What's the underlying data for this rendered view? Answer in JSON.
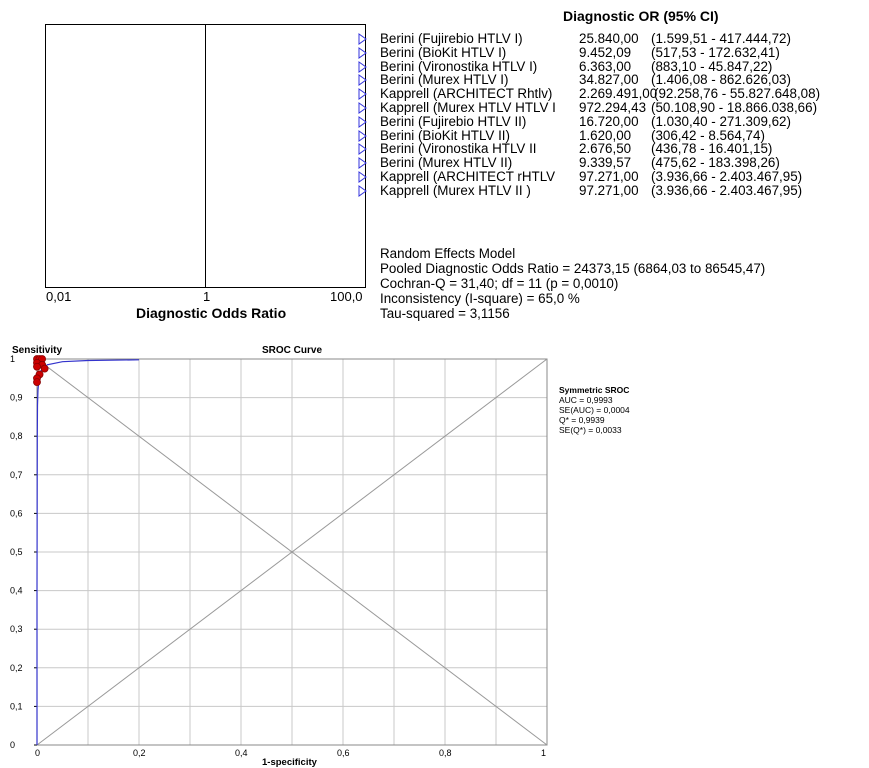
{
  "forest": {
    "header": "Diagnostic OR (95% CI)",
    "ticks": [
      "0,01",
      "1",
      "100,0"
    ],
    "xlabel": "Diagnostic Odds Ratio",
    "studies": [
      {
        "name": "Berini (Fujirebio HTLV I)",
        "or": "25.840,00",
        "ci": "(1.599,51 - 417.444,72)"
      },
      {
        "name": "Berini (BioKit HTLV I)",
        "or": "9.452,09",
        "ci": "(517,53 - 172.632,41)"
      },
      {
        "name": "Berini (Vironostika HTLV I)",
        "or": "6.363,00",
        "ci": "(883,10 - 45.847,22)"
      },
      {
        "name": "Berini (Murex HTLV I)",
        "or": "34.827,00",
        "ci": "(1.406,08 - 862.626,03)"
      },
      {
        "name": "Kapprell (ARCHITECT Rhtlv)",
        "or": "2.269.491,00",
        "ci": "(92.258,76 - 55.827.648,08)"
      },
      {
        "name": "Kapprell (Murex HTLV HTLV I",
        "or": "972.294,43",
        "ci": "(50.108,90 - 18.866.038,66)"
      },
      {
        "name": "Berini (Fujirebio HTLV II)",
        "or": "16.720,00",
        "ci": "(1.030,40 - 271.309,62)"
      },
      {
        "name": "Berini (BioKit HTLV II)",
        "or": "1.620,00",
        "ci": "(306,42 - 8.564,74)"
      },
      {
        "name": "Berini (Vironostika HTLV II",
        "or": "2.676,50",
        "ci": "(436,78 - 16.401,15)"
      },
      {
        "name": "Berini (Murex HTLV II)",
        "or": "9.339,57",
        "ci": "(475,62 - 183.398,26)"
      },
      {
        "name": "Kapprell (ARCHITECT rHTLV",
        "or": "97.271,00",
        "ci": "(3.936,66 - 2.403.467,95)"
      },
      {
        "name": "Kapprell (Murex HTLV II )",
        "or": "97.271,00",
        "ci": "(3.936,66 - 2.403.467,95)"
      }
    ],
    "summary": [
      "Random Effects Model",
      "Pooled Diagnostic Odds Ratio = 24373,15 (6864,03 to 86545,47)",
      "Cochran-Q = 31,40; df =  11 (p = 0,0010)",
      "Inconsistency (I-square) = 65,0 %",
      "Tau-squared = 3,1156"
    ],
    "marker_color": "#3333dd"
  },
  "chart_data": {
    "type": "scatter",
    "title": "SROC Curve",
    "ylabel": "Sensitivity",
    "xlabel": "1-specificity",
    "xlim": [
      0,
      1
    ],
    "ylim": [
      0,
      1
    ],
    "x_ticks": [
      "0",
      "0,2",
      "0,4",
      "0,6",
      "0,8",
      "1"
    ],
    "y_ticks": [
      "0",
      "0,1",
      "0,2",
      "0,3",
      "0,4",
      "0,5",
      "0,6",
      "0,7",
      "0,8",
      "0,9",
      "1"
    ],
    "grid": true,
    "points": [
      {
        "x": 0.0,
        "y": 1.0
      },
      {
        "x": 0.005,
        "y": 1.0
      },
      {
        "x": 0.01,
        "y": 1.0
      },
      {
        "x": 0.0,
        "y": 0.99
      },
      {
        "x": 0.01,
        "y": 0.985
      },
      {
        "x": 0.015,
        "y": 0.975
      },
      {
        "x": 0.005,
        "y": 0.96
      },
      {
        "x": 0.0,
        "y": 0.95
      },
      {
        "x": 0.0,
        "y": 0.94
      },
      {
        "x": 0.0,
        "y": 0.98
      }
    ],
    "curve": [
      {
        "x": 0.0,
        "y": 0.0
      },
      {
        "x": 0.0,
        "y": 0.4
      },
      {
        "x": 0.0005,
        "y": 0.8
      },
      {
        "x": 0.001,
        "y": 0.88
      },
      {
        "x": 0.002,
        "y": 0.92
      },
      {
        "x": 0.004,
        "y": 0.95
      },
      {
        "x": 0.008,
        "y": 0.97
      },
      {
        "x": 0.02,
        "y": 0.985
      },
      {
        "x": 0.05,
        "y": 0.993
      },
      {
        "x": 0.1,
        "y": 0.996
      },
      {
        "x": 0.2,
        "y": 0.998
      }
    ],
    "point_color": "#cc0000",
    "curve_color": "#3333cc",
    "symmetric_sroc": {
      "title": "Symmetric SROC",
      "lines": [
        "AUC = 0,9993",
        "SE(AUC) = 0,0004",
        "Q* = 0,9939",
        "SE(Q*) = 0,0033"
      ]
    }
  }
}
